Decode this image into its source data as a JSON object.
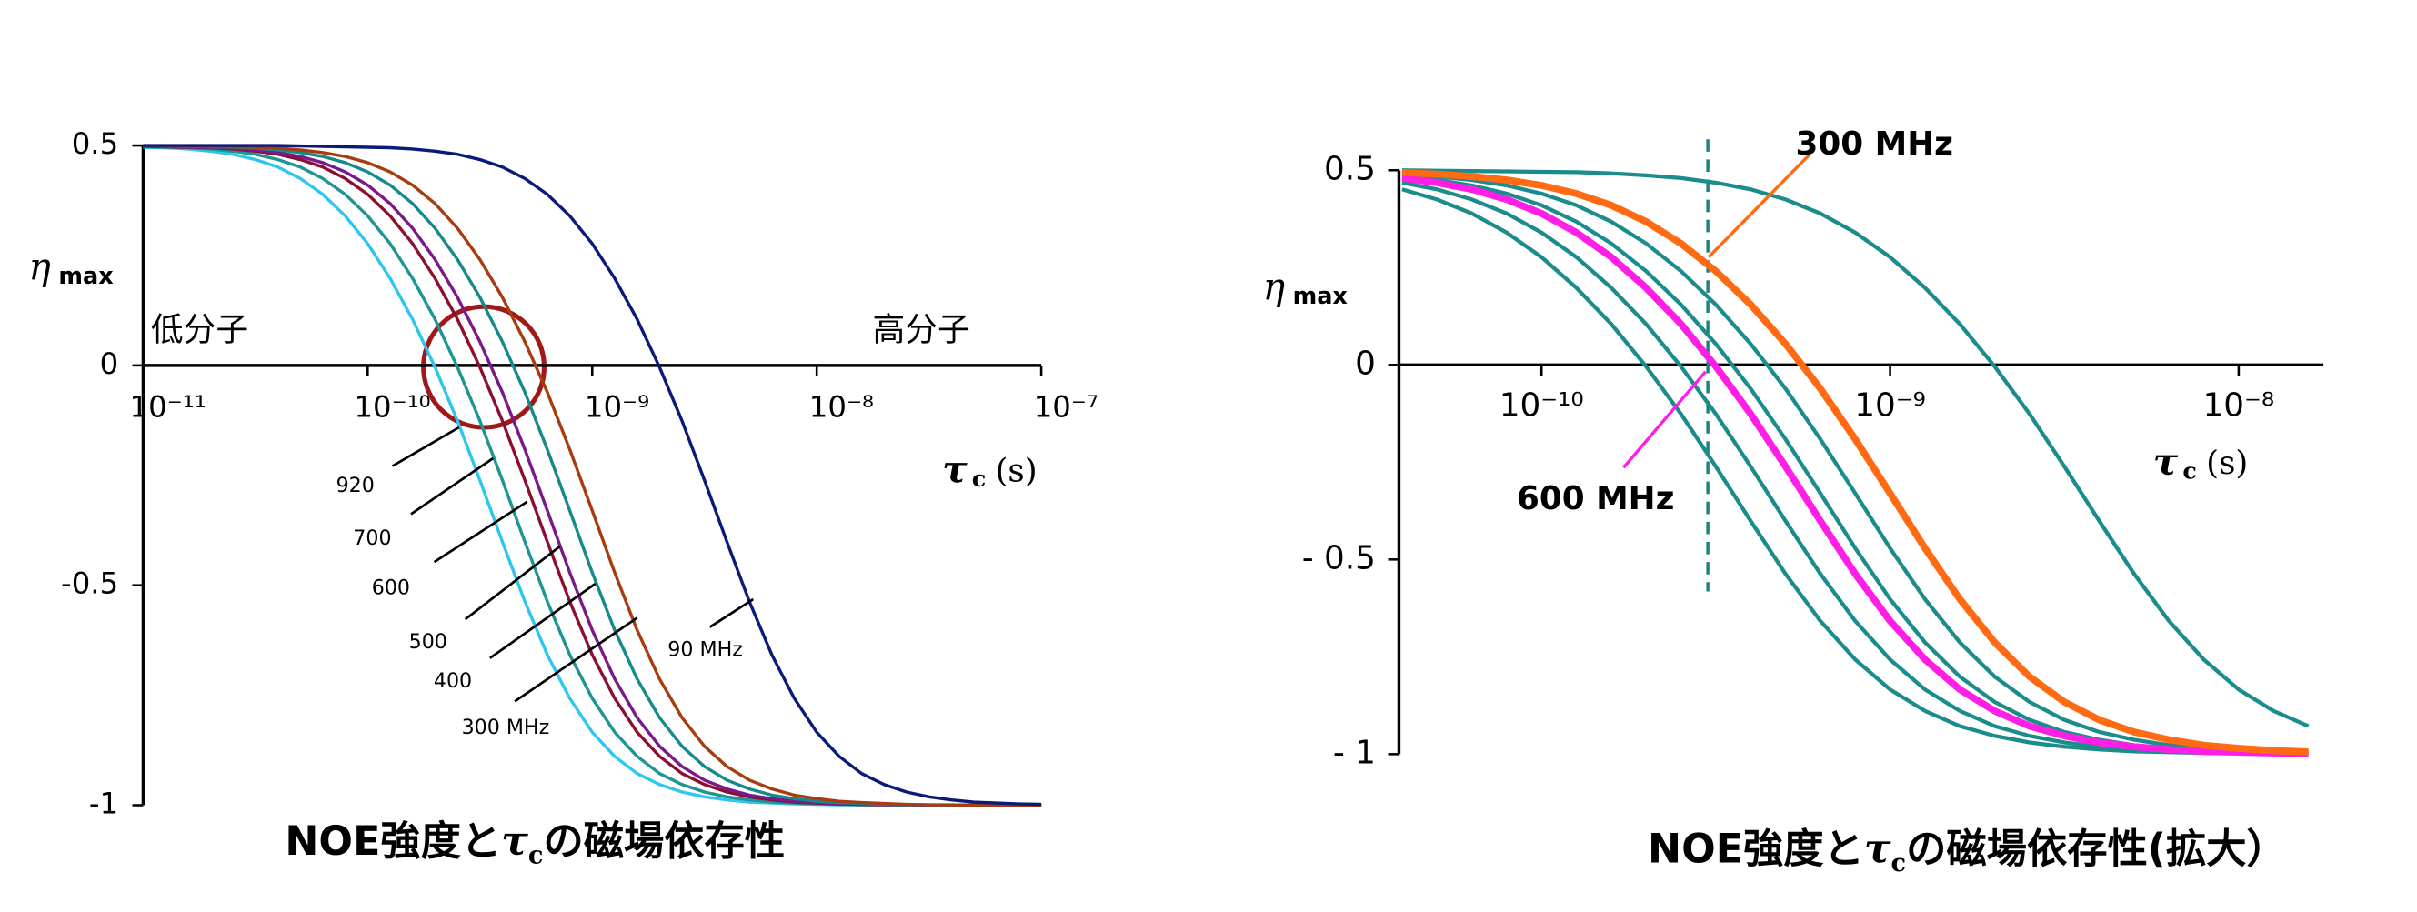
{
  "chart_data": [
    {
      "type": "line",
      "title": {
        "before": "NOE強度と",
        "symbol": "τ",
        "subscript": "c",
        "after": "の磁場依存性"
      },
      "y_label": {
        "symbol": "η",
        "subscript": "max"
      },
      "x_label": {
        "symbol": "τ",
        "subscript": "c",
        "unit": "(s)"
      },
      "annotations": [
        "低分子",
        "高分子"
      ],
      "log_x": true,
      "grid": false,
      "xlim": [
        1e-11,
        1e-07
      ],
      "ylim": [
        -1,
        0.5
      ],
      "xticks": [
        {
          "value": 1e-11,
          "label": "10⁻¹¹"
        },
        {
          "value": 1e-10,
          "label": "10⁻¹⁰"
        },
        {
          "value": 1e-09,
          "label": "10⁻⁹"
        },
        {
          "value": 1e-08,
          "label": "10⁻⁸"
        },
        {
          "value": 1e-07,
          "label": "10⁻⁷"
        }
      ],
      "yticks": [
        0.5,
        0,
        -0.5,
        -1
      ],
      "x": [
        1e-11,
        1.259e-11,
        1.585e-11,
        1.995e-11,
        2.512e-11,
        3.162e-11,
        3.981e-11,
        5.012e-11,
        6.31e-11,
        7.943e-11,
        1e-10,
        1.259e-10,
        1.585e-10,
        1.995e-10,
        2.512e-10,
        3.162e-10,
        3.981e-10,
        5.012e-10,
        6.31e-10,
        7.943e-10,
        1e-09,
        1.259e-09,
        1.585e-09,
        1.995e-09,
        2.512e-09,
        3.162e-09,
        3.981e-09,
        5.012e-09,
        6.31e-09,
        7.943e-09,
        1e-08,
        1.259e-08,
        1.585e-08,
        1.995e-08,
        2.512e-08,
        3.162e-08,
        3.981e-08,
        5.012e-08,
        6.31e-08,
        7.943e-08,
        1e-07
      ],
      "series": [
        {
          "name": "920",
          "color": "#2ec6f0",
          "values": [
            0.496,
            0.495,
            0.492,
            0.487,
            0.48,
            0.468,
            0.451,
            0.425,
            0.389,
            0.34,
            0.277,
            0.198,
            0.105,
            -0.004,
            -0.126,
            -0.261,
            -0.401,
            -0.537,
            -0.658,
            -0.757,
            -0.834,
            -0.889,
            -0.928,
            -0.953,
            -0.97,
            -0.981,
            -0.988,
            -0.993,
            -0.995,
            -0.997,
            -0.998,
            -0.999,
            -0.999,
            -1,
            -1,
            -1,
            -1,
            -1,
            -1,
            -1,
            -1
          ]
        },
        {
          "name": "700",
          "color": "#1f9494",
          "values": [
            0.497,
            0.496,
            0.495,
            0.492,
            0.487,
            0.48,
            0.468,
            0.451,
            0.425,
            0.389,
            0.34,
            0.277,
            0.198,
            0.105,
            -0.004,
            -0.126,
            -0.261,
            -0.401,
            -0.537,
            -0.658,
            -0.757,
            -0.834,
            -0.889,
            -0.928,
            -0.953,
            -0.97,
            -0.981,
            -0.988,
            -0.993,
            -0.995,
            -0.997,
            -0.998,
            -0.999,
            -0.999,
            -1,
            -1,
            -1,
            -1,
            -1,
            -1,
            -1
          ]
        },
        {
          "name": "600",
          "color": "#8b1030",
          "values": [
            0.498,
            0.497,
            0.496,
            0.495,
            0.492,
            0.487,
            0.48,
            0.468,
            0.451,
            0.425,
            0.389,
            0.34,
            0.277,
            0.198,
            0.105,
            -0.004,
            -0.126,
            -0.261,
            -0.401,
            -0.537,
            -0.658,
            -0.757,
            -0.834,
            -0.889,
            -0.928,
            -0.953,
            -0.97,
            -0.981,
            -0.988,
            -0.993,
            -0.995,
            -0.997,
            -0.998,
            -0.999,
            -0.999,
            -1,
            -1,
            -1,
            -1,
            -1,
            -1
          ]
        },
        {
          "name": "500",
          "color": "#7a1a8a",
          "values": [
            0.499,
            0.498,
            0.497,
            0.496,
            0.494,
            0.49,
            0.484,
            0.475,
            0.461,
            0.44,
            0.41,
            0.368,
            0.312,
            0.241,
            0.155,
            0.054,
            -0.061,
            -0.191,
            -0.33,
            -0.471,
            -0.602,
            -0.713,
            -0.801,
            -0.866,
            -0.912,
            -0.943,
            -0.963,
            -0.977,
            -0.985,
            -0.991,
            -0.994,
            -0.996,
            -0.998,
            -0.999,
            -0.999,
            -1,
            -1,
            -1,
            -1,
            -1,
            -1
          ]
        },
        {
          "name": "400",
          "color": "#158a8a",
          "values": [
            0.499,
            0.499,
            0.498,
            0.497,
            0.496,
            0.494,
            0.49,
            0.484,
            0.475,
            0.461,
            0.44,
            0.41,
            0.368,
            0.312,
            0.241,
            0.155,
            0.054,
            -0.061,
            -0.191,
            -0.33,
            -0.471,
            -0.602,
            -0.713,
            -0.801,
            -0.866,
            -0.912,
            -0.943,
            -0.963,
            -0.977,
            -0.985,
            -0.991,
            -0.994,
            -0.996,
            -0.998,
            -0.999,
            -0.999,
            -1,
            -1,
            -1,
            -1,
            -1
          ]
        },
        {
          "name": "300 MHz",
          "color": "#a83c10",
          "values": [
            0.5,
            0.499,
            0.499,
            0.498,
            0.497,
            0.496,
            0.494,
            0.49,
            0.484,
            0.475,
            0.461,
            0.44,
            0.41,
            0.368,
            0.312,
            0.241,
            0.155,
            0.054,
            -0.061,
            -0.191,
            -0.33,
            -0.471,
            -0.602,
            -0.713,
            -0.801,
            -0.866,
            -0.912,
            -0.943,
            -0.963,
            -0.977,
            -0.985,
            -0.991,
            -0.994,
            -0.996,
            -0.998,
            -0.999,
            -0.999,
            -1,
            -1,
            -1,
            -1
          ]
        },
        {
          "name": "90 MHz",
          "color": "#0a1a7a",
          "values": [
            0.5,
            0.5,
            0.5,
            0.5,
            0.5,
            0.5,
            0.5,
            0.499,
            0.498,
            0.497,
            0.496,
            0.495,
            0.492,
            0.487,
            0.48,
            0.468,
            0.451,
            0.425,
            0.389,
            0.34,
            0.277,
            0.198,
            0.105,
            -0.004,
            -0.126,
            -0.261,
            -0.401,
            -0.537,
            -0.658,
            -0.757,
            -0.834,
            -0.889,
            -0.928,
            -0.953,
            -0.97,
            -0.981,
            -0.988,
            -0.993,
            -0.995,
            -0.997,
            -0.998
          ]
        }
      ]
    },
    {
      "type": "line",
      "title": {
        "before": "NOE強度と",
        "symbol": "τ",
        "subscript": "c",
        "after": "の磁場依存性(拡大）"
      },
      "y_label": {
        "symbol": "η",
        "subscript": "max"
      },
      "x_label": {
        "symbol": "τ",
        "subscript": "c",
        "unit": "(s)"
      },
      "log_x": true,
      "grid": false,
      "reference_line_x": 3e-10,
      "xlim": [
        3.9e-11,
        1.75e-08
      ],
      "ylim": [
        -1.05,
        0.55
      ],
      "xticks": [
        {
          "value": 1e-10,
          "label": "10⁻¹⁰"
        },
        {
          "value": 1e-09,
          "label": "10⁻⁹"
        },
        {
          "value": 1e-08,
          "label": "10⁻⁸"
        }
      ],
      "yticks": [
        0.5,
        0,
        {
          "value": -0.5,
          "label": "- 0.5"
        },
        {
          "value": -1,
          "label": "- 1"
        }
      ],
      "x": [
        3.981e-11,
        5.012e-11,
        6.31e-11,
        7.943e-11,
        1e-10,
        1.259e-10,
        1.585e-10,
        1.995e-10,
        2.512e-10,
        3.162e-10,
        3.981e-10,
        5.012e-10,
        6.31e-10,
        7.943e-10,
        1e-09,
        1.259e-09,
        1.585e-09,
        1.995e-09,
        2.512e-09,
        3.162e-09,
        3.981e-09,
        5.012e-09,
        6.31e-09,
        7.943e-09,
        1e-08,
        1.259e-08,
        1.585e-08
      ],
      "series": [
        {
          "color": "#1a8c8c",
          "values": [
            0.451,
            0.425,
            0.389,
            0.34,
            0.277,
            0.198,
            0.105,
            -0.004,
            -0.126,
            -0.261,
            -0.401,
            -0.537,
            -0.658,
            -0.757,
            -0.834,
            -0.889,
            -0.928,
            -0.953,
            -0.97,
            -0.981,
            -0.988,
            -0.993,
            -0.995,
            -0.997,
            -0.998,
            -0.999,
            -0.999
          ]
        },
        {
          "color": "#1a8c8c",
          "values": [
            0.468,
            0.451,
            0.425,
            0.389,
            0.34,
            0.277,
            0.198,
            0.105,
            -0.004,
            -0.126,
            -0.261,
            -0.401,
            -0.537,
            -0.658,
            -0.757,
            -0.834,
            -0.889,
            -0.928,
            -0.953,
            -0.97,
            -0.981,
            -0.988,
            -0.993,
            -0.995,
            -0.997,
            -0.998,
            -0.999
          ]
        },
        {
          "name": "600 MHz",
          "color": "#ff1ee6",
          "values": [
            0.48,
            0.468,
            0.451,
            0.425,
            0.389,
            0.34,
            0.277,
            0.198,
            0.105,
            -0.004,
            -0.126,
            -0.261,
            -0.401,
            -0.537,
            -0.658,
            -0.757,
            -0.834,
            -0.889,
            -0.928,
            -0.953,
            -0.97,
            -0.981,
            -0.988,
            -0.993,
            -0.995,
            -0.997,
            -0.998
          ]
        },
        {
          "color": "#1a8c8c",
          "values": [
            0.484,
            0.475,
            0.461,
            0.44,
            0.41,
            0.368,
            0.312,
            0.241,
            0.155,
            0.054,
            -0.061,
            -0.191,
            -0.33,
            -0.471,
            -0.602,
            -0.713,
            -0.801,
            -0.866,
            -0.912,
            -0.943,
            -0.963,
            -0.977,
            -0.985,
            -0.991,
            -0.994,
            -0.996,
            -0.998
          ]
        },
        {
          "color": "#1a8c8c",
          "values": [
            0.49,
            0.484,
            0.475,
            0.461,
            0.44,
            0.41,
            0.368,
            0.312,
            0.241,
            0.155,
            0.054,
            -0.061,
            -0.191,
            -0.33,
            -0.471,
            -0.602,
            -0.713,
            -0.801,
            -0.866,
            -0.912,
            -0.943,
            -0.963,
            -0.977,
            -0.985,
            -0.991,
            -0.994,
            -0.996
          ]
        },
        {
          "name": "300 MHz",
          "color": "#ff6a13",
          "values": [
            0.494,
            0.49,
            0.484,
            0.475,
            0.461,
            0.44,
            0.41,
            0.368,
            0.312,
            0.241,
            0.155,
            0.054,
            -0.061,
            -0.191,
            -0.33,
            -0.471,
            -0.602,
            -0.713,
            -0.801,
            -0.866,
            -0.912,
            -0.943,
            -0.963,
            -0.977,
            -0.985,
            -0.991,
            -0.994
          ]
        },
        {
          "color": "#1a8c8c",
          "values": [
            0.5,
            0.499,
            0.498,
            0.497,
            0.496,
            0.495,
            0.492,
            0.487,
            0.48,
            0.468,
            0.451,
            0.425,
            0.389,
            0.34,
            0.277,
            0.198,
            0.105,
            -0.004,
            -0.126,
            -0.261,
            -0.401,
            -0.537,
            -0.658,
            -0.757,
            -0.834,
            -0.889,
            -0.928
          ]
        }
      ]
    }
  ]
}
